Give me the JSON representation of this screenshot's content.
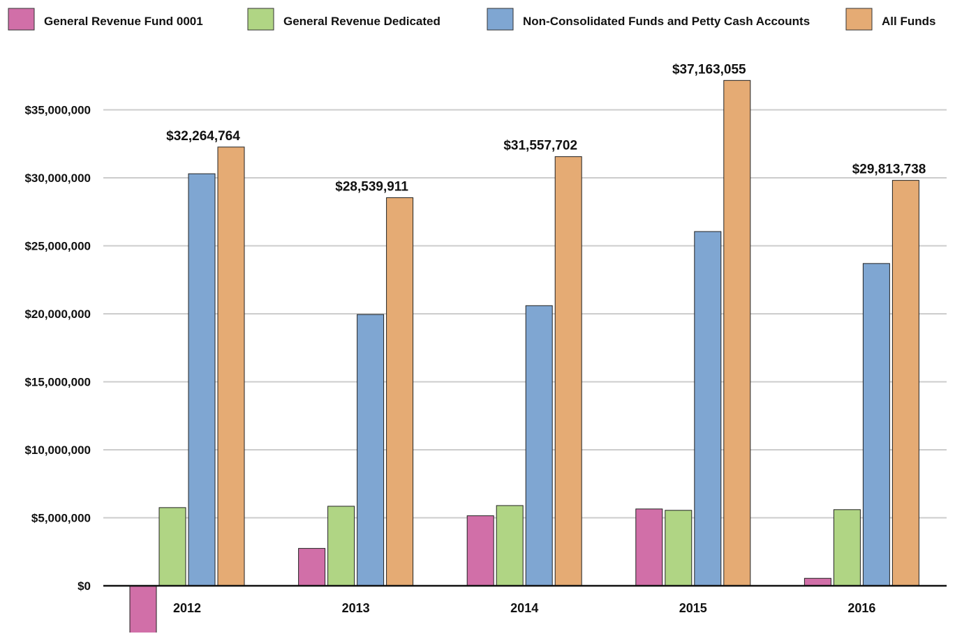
{
  "chart_data": {
    "type": "bar",
    "title": "",
    "xlabel": "",
    "ylabel": "",
    "categories": [
      "2012",
      "2013",
      "2014",
      "2015",
      "2016"
    ],
    "series": [
      {
        "name": "General Revenue Fund 0001",
        "color": "#d16fa8",
        "values": [
          -3500000,
          2750000,
          5150000,
          5650000,
          550000
        ]
      },
      {
        "name": "General Revenue Dedicated",
        "color": "#b0d584",
        "values": [
          5750000,
          5850000,
          5900000,
          5550000,
          5600000
        ]
      },
      {
        "name": "Non-Consolidated Funds and Petty Cash Accounts",
        "color": "#7fa6d2",
        "values": [
          30300000,
          19950000,
          20600000,
          26050000,
          23700000
        ]
      },
      {
        "name": "All Funds",
        "color": "#e5ab74",
        "values": [
          32264764,
          28539911,
          31557702,
          37163055,
          29813738
        ]
      }
    ],
    "data_labels": {
      "series": "All Funds",
      "labels": [
        "$32,264,764",
        "$28,539,911",
        "$31,557,702",
        "$37,163,055",
        "$29,813,738"
      ]
    },
    "yticks": [
      {
        "value": 0,
        "label": "$0"
      },
      {
        "value": 5000000,
        "label": "$5,000,000"
      },
      {
        "value": 10000000,
        "label": "$10,000,000"
      },
      {
        "value": 15000000,
        "label": "$15,000,000"
      },
      {
        "value": 20000000,
        "label": "$20,000,000"
      },
      {
        "value": 25000000,
        "label": "$25,000,000"
      },
      {
        "value": 30000000,
        "label": "$30,000,000"
      },
      {
        "value": 35000000,
        "label": "$35,000,000"
      }
    ],
    "ylim": [
      -3500000,
      37163055
    ],
    "grid": true,
    "legend_position": "top"
  }
}
